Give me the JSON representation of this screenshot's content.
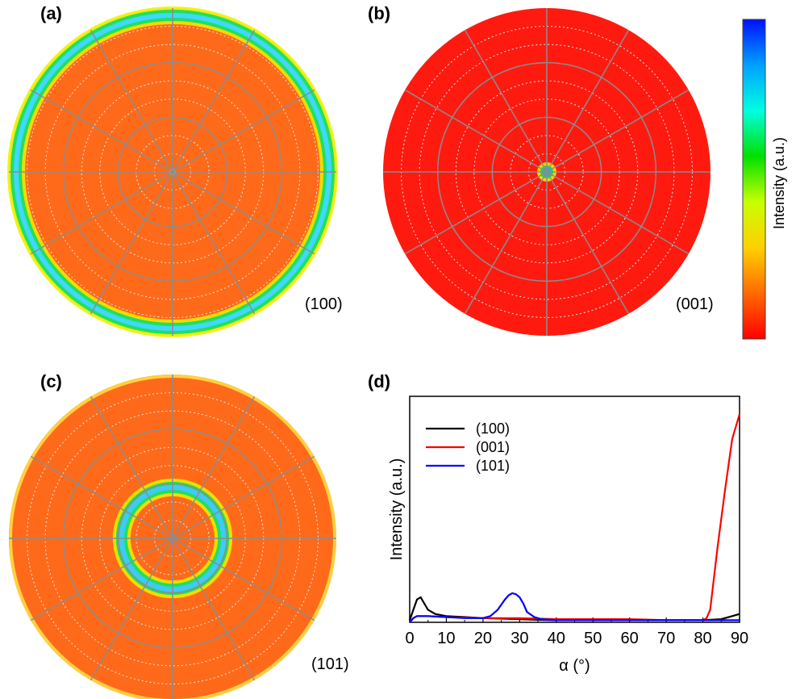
{
  "panels": {
    "a": {
      "letter": "(a)",
      "plane": "(100)"
    },
    "b": {
      "letter": "(b)",
      "plane": "(001)"
    },
    "c": {
      "letter": "(c)",
      "plane": "(101)"
    },
    "d": {
      "letter": "(d)"
    }
  },
  "colorbar": {
    "label": "Intensity (a.u.)",
    "stops": [
      "#ff0000",
      "#ff6a00",
      "#ffd000",
      "#c8ff00",
      "#00e000",
      "#00ffe0",
      "#00a0ff",
      "#0010ff"
    ]
  },
  "pole_figures": [
    {
      "plane": "(100)",
      "base_color": "#ff6a1a",
      "rings": [
        {
          "alpha": 86,
          "color": "#40d8ff"
        }
      ],
      "center_spot": true
    },
    {
      "plane": "(001)",
      "base_color": "#ff1a10",
      "rings": [],
      "center_spot": true
    },
    {
      "plane": "(101)",
      "base_color": "#ff6a1a",
      "rings": [
        {
          "alpha": 28,
          "color": "#40c8ff"
        }
      ],
      "center_spot": false
    }
  ],
  "chart_data": {
    "type": "line",
    "xlabel": "α (°)",
    "ylabel": "Intensity (a.u.)",
    "xlim": [
      0,
      90
    ],
    "ylim": [
      0,
      100
    ],
    "xticks": [
      "0",
      "10",
      "20",
      "30",
      "40",
      "50",
      "60",
      "70",
      "80",
      "90"
    ],
    "series": [
      {
        "name": "(100)",
        "color": "#000000",
        "x": [
          0,
          1,
          2,
          3,
          4,
          5,
          7,
          10,
          15,
          20,
          25,
          30,
          35,
          40,
          50,
          60,
          70,
          80,
          85,
          88,
          90
        ],
        "y": [
          1,
          6,
          11,
          12,
          9,
          6,
          4,
          3,
          2.5,
          2,
          1.8,
          1.5,
          1.2,
          1,
          1,
          1,
          1,
          1,
          1.5,
          3,
          4
        ]
      },
      {
        "name": "(001)",
        "color": "#ff0000",
        "x": [
          0,
          1,
          2,
          5,
          10,
          20,
          30,
          40,
          50,
          60,
          70,
          78,
          80,
          81,
          82,
          84,
          86,
          88,
          90
        ],
        "y": [
          0,
          2,
          3,
          3,
          2.5,
          2,
          2,
          1.5,
          1.5,
          1.5,
          1,
          1,
          1,
          2,
          6,
          36,
          63,
          88,
          100
        ]
      },
      {
        "name": "(101)",
        "color": "#0000ff",
        "x": [
          0,
          1,
          2,
          5,
          10,
          15,
          20,
          22,
          24,
          26,
          27,
          28,
          29,
          30,
          31,
          32,
          34,
          36,
          40,
          50,
          60,
          70,
          80,
          90
        ],
        "y": [
          0,
          2,
          3,
          3,
          2.5,
          2,
          2,
          3,
          6,
          11,
          13,
          14,
          13.5,
          12,
          9,
          5,
          2.5,
          1.5,
          1,
          1,
          1,
          1,
          1,
          1
        ]
      }
    ]
  }
}
